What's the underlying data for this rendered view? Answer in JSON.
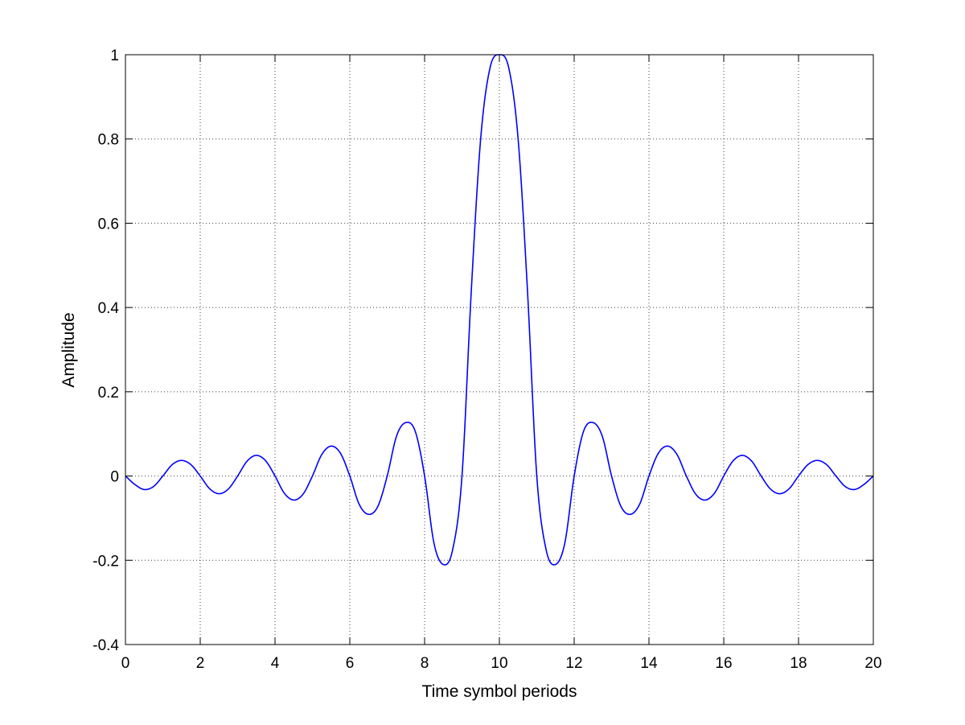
{
  "chart_data": {
    "type": "line",
    "title": "",
    "xlabel": "Time symbol periods",
    "ylabel": "Amplitude",
    "xlim": [
      0,
      20
    ],
    "ylim": [
      -0.4,
      1
    ],
    "x_ticks": [
      0,
      2,
      4,
      6,
      8,
      10,
      12,
      14,
      16,
      18,
      20
    ],
    "y_ticks": [
      -0.4,
      -0.2,
      0,
      0.2,
      0.4,
      0.6,
      0.8,
      1
    ],
    "x_tick_labels": [
      "0",
      "2",
      "4",
      "6",
      "8",
      "10",
      "12",
      "14",
      "16",
      "18",
      "20"
    ],
    "y_tick_labels": [
      "-0.4",
      "-0.2",
      "0",
      "0.2",
      "0.4",
      "0.6",
      "0.8",
      "1"
    ],
    "grid": true,
    "legend": "none",
    "line_color": "#0000ff",
    "series": [
      {
        "x": [
          0,
          0.25,
          0.5,
          0.75,
          1,
          1.25,
          1.5,
          1.75,
          2,
          2.25,
          2.5,
          2.75,
          3,
          3.25,
          3.5,
          3.75,
          4,
          4.25,
          4.5,
          4.75,
          5,
          5.25,
          5.5,
          5.75,
          6,
          6.25,
          6.5,
          6.75,
          7,
          7.25,
          7.5,
          7.75,
          8,
          8.25,
          8.5,
          8.75,
          9,
          9.25,
          9.5,
          9.75,
          10,
          10.25,
          10.5,
          10.75,
          11,
          11.25,
          11.5,
          11.75,
          12,
          12.25,
          12.5,
          12.75,
          13,
          13.25,
          13.5,
          13.75,
          14,
          14.25,
          14.5,
          14.75,
          15,
          15.25,
          15.5,
          15.75,
          16,
          16.25,
          16.5,
          16.75,
          17,
          17.25,
          17.5,
          17.75,
          18,
          18.25,
          18.5,
          18.75,
          19,
          19.25,
          19.5,
          19.75,
          20
        ],
        "y": [
          0,
          -0.02,
          -0.032,
          -0.025,
          0,
          0.027,
          0.037,
          0.027,
          0,
          -0.03,
          -0.042,
          -0.031,
          0,
          0.035,
          0.049,
          0.036,
          0,
          -0.041,
          -0.057,
          -0.043,
          0,
          0.051,
          0.071,
          0.054,
          0,
          -0.067,
          -0.091,
          -0.072,
          0,
          0.095,
          0.127,
          0.106,
          0,
          -0.159,
          -0.21,
          -0.175,
          0,
          0.442,
          0.801,
          0.969,
          1,
          0.969,
          0.801,
          0.442,
          0,
          -0.175,
          -0.21,
          -0.159,
          0,
          0.106,
          0.127,
          0.095,
          0,
          -0.072,
          -0.091,
          -0.067,
          0,
          0.054,
          0.071,
          0.051,
          0,
          -0.043,
          -0.057,
          -0.041,
          0,
          0.036,
          0.049,
          0.035,
          0,
          -0.031,
          -0.042,
          -0.03,
          0,
          0.027,
          0.037,
          0.027,
          0,
          -0.025,
          -0.032,
          -0.02,
          0
        ]
      }
    ]
  }
}
